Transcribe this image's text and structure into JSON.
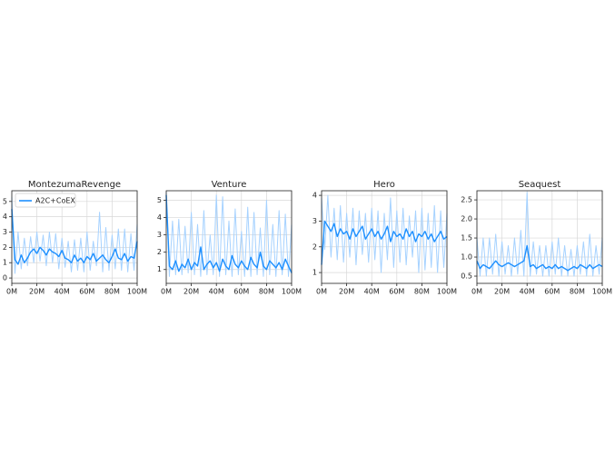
{
  "chart_data": [
    {
      "type": "line",
      "title": "MontezumaRevenge",
      "grid": true,
      "legend": "upper left",
      "x": [
        0,
        2.5,
        5,
        7.5,
        10,
        12.5,
        15,
        17.5,
        20,
        22.5,
        25,
        27.5,
        30,
        32.5,
        35,
        37.5,
        40,
        42.5,
        45,
        47.5,
        50,
        52.5,
        55,
        57.5,
        60,
        62.5,
        65,
        67.5,
        70,
        72.5,
        75,
        77.5,
        80,
        82.5,
        85,
        87.5,
        90,
        92.5,
        95,
        97.5,
        100
      ],
      "xlim": [
        0,
        100
      ],
      "xticks": [
        {
          "value": 0,
          "label": "0M"
        },
        {
          "value": 20,
          "label": "20M"
        },
        {
          "value": 40,
          "label": "40M"
        },
        {
          "value": 60,
          "label": "60M"
        },
        {
          "value": 80,
          "label": "80M"
        },
        {
          "value": 100,
          "label": "100M"
        }
      ],
      "ylim": [
        -0.35,
        5.7
      ],
      "yticks": [
        0,
        1,
        2,
        3,
        4,
        5
      ],
      "series": [
        {
          "color": "#a6d2ff",
          "values": [
            5.3,
            0.3,
            3.0,
            0.6,
            2.6,
            0.8,
            2.7,
            1.0,
            3.0,
            1.1,
            2.8,
            0.8,
            3.0,
            1.0,
            2.9,
            0.6,
            2.6,
            0.7,
            2.4,
            0.4,
            2.5,
            0.5,
            2.6,
            0.4,
            3.0,
            0.5,
            2.4,
            0.8,
            4.3,
            0.4,
            3.3,
            0.5,
            2.8,
            0.6,
            3.2,
            0.5,
            3.2,
            0.4,
            2.9,
            0.5,
            3.5
          ]
        },
        {
          "name": "A2C+CoEX",
          "color": "#1e90ff",
          "values": [
            4.5,
            1.2,
            0.9,
            1.5,
            1.0,
            1.3,
            1.7,
            1.9,
            1.6,
            2.0,
            1.8,
            1.5,
            1.9,
            1.7,
            1.6,
            1.4,
            1.8,
            1.3,
            1.2,
            1.0,
            1.5,
            1.1,
            1.3,
            1.0,
            1.4,
            1.2,
            1.6,
            1.1,
            1.3,
            1.5,
            1.2,
            1.0,
            1.4,
            1.9,
            1.3,
            1.2,
            1.6,
            1.1,
            1.4,
            1.3,
            2.4
          ]
        }
      ]
    },
    {
      "type": "line",
      "title": "Venture",
      "grid": true,
      "x": [
        0,
        2.5,
        5,
        7.5,
        10,
        12.5,
        15,
        17.5,
        20,
        22.5,
        25,
        27.5,
        30,
        32.5,
        35,
        37.5,
        40,
        42.5,
        45,
        47.5,
        50,
        52.5,
        55,
        57.5,
        60,
        62.5,
        65,
        67.5,
        70,
        72.5,
        75,
        77.5,
        80,
        82.5,
        85,
        87.5,
        90,
        92.5,
        95,
        97.5,
        100
      ],
      "xlim": [
        0,
        100
      ],
      "xticks": [
        {
          "value": 0,
          "label": "0M"
        },
        {
          "value": 20,
          "label": "20M"
        },
        {
          "value": 40,
          "label": "40M"
        },
        {
          "value": 60,
          "label": "60M"
        },
        {
          "value": 80,
          "label": "80M"
        },
        {
          "value": 100,
          "label": "100M"
        }
      ],
      "ylim": [
        0.2,
        5.55
      ],
      "yticks": [
        1,
        2,
        3,
        4,
        5
      ],
      "series": [
        {
          "color": "#a6d2ff",
          "values": [
            5.5,
            0.6,
            3.8,
            0.7,
            3.9,
            0.7,
            3.5,
            0.8,
            4.3,
            0.7,
            3.6,
            0.6,
            4.4,
            0.7,
            3.0,
            0.7,
            5.3,
            0.6,
            5.2,
            0.7,
            3.8,
            0.6,
            4.5,
            0.7,
            3.2,
            0.6,
            4.6,
            0.6,
            4.3,
            0.7,
            3.4,
            0.6,
            5.0,
            0.7,
            3.6,
            0.6,
            4.4,
            0.7,
            4.2,
            0.6,
            3.6
          ]
        },
        {
          "name": "A2C+CoEX",
          "color": "#1e90ff",
          "values": [
            5.3,
            1.2,
            1.0,
            1.5,
            0.9,
            1.3,
            1.1,
            1.6,
            1.0,
            1.4,
            1.2,
            2.3,
            1.0,
            1.3,
            1.5,
            1.1,
            1.4,
            0.9,
            1.6,
            1.2,
            1.0,
            1.8,
            1.3,
            1.1,
            1.5,
            1.2,
            1.0,
            1.7,
            1.3,
            1.1,
            2.0,
            1.2,
            1.0,
            1.5,
            1.3,
            1.1,
            1.4,
            1.0,
            1.6,
            1.2,
            0.8
          ]
        }
      ]
    },
    {
      "type": "line",
      "title": "Hero",
      "grid": true,
      "x": [
        0,
        2.5,
        5,
        7.5,
        10,
        12.5,
        15,
        17.5,
        20,
        22.5,
        25,
        27.5,
        30,
        32.5,
        35,
        37.5,
        40,
        42.5,
        45,
        47.5,
        50,
        52.5,
        55,
        57.5,
        60,
        62.5,
        65,
        67.5,
        70,
        72.5,
        75,
        77.5,
        80,
        82.5,
        85,
        87.5,
        90,
        92.5,
        95,
        97.5,
        100
      ],
      "xlim": [
        0,
        100
      ],
      "xticks": [
        {
          "value": 0,
          "label": "0M"
        },
        {
          "value": 20,
          "label": "20M"
        },
        {
          "value": 40,
          "label": "40M"
        },
        {
          "value": 60,
          "label": "60M"
        },
        {
          "value": 80,
          "label": "80M"
        },
        {
          "value": 100,
          "label": "100M"
        }
      ],
      "ylim": [
        0.58,
        4.18
      ],
      "yticks": [
        1,
        2,
        3,
        4
      ],
      "series": [
        {
          "color": "#a6d2ff",
          "values": [
            3.9,
            1.9,
            4.0,
            1.6,
            3.5,
            1.5,
            3.6,
            1.4,
            3.3,
            1.6,
            3.5,
            1.3,
            3.4,
            1.7,
            3.3,
            1.4,
            3.5,
            1.5,
            3.4,
            1.0,
            3.3,
            1.5,
            3.9,
            1.2,
            3.4,
            1.4,
            3.5,
            1.3,
            3.2,
            1.6,
            3.4,
            1.0,
            3.5,
            1.1,
            3.3,
            1.2,
            3.6,
            1.0,
            3.4,
            1.2,
            3.3
          ]
        },
        {
          "name": "A2C+CoEX",
          "color": "#1e90ff",
          "values": [
            1.3,
            3.0,
            2.8,
            2.6,
            2.9,
            2.4,
            2.7,
            2.5,
            2.6,
            2.3,
            2.7,
            2.4,
            2.6,
            2.8,
            2.3,
            2.5,
            2.7,
            2.4,
            2.6,
            2.3,
            2.5,
            2.8,
            2.2,
            2.6,
            2.4,
            2.5,
            2.3,
            2.7,
            2.4,
            2.6,
            2.2,
            2.5,
            2.4,
            2.6,
            2.3,
            2.5,
            2.2,
            2.4,
            2.6,
            2.3,
            2.4
          ]
        }
      ]
    },
    {
      "type": "line",
      "title": "Seaquest",
      "grid": true,
      "x": [
        0,
        2.5,
        5,
        7.5,
        10,
        12.5,
        15,
        17.5,
        20,
        22.5,
        25,
        27.5,
        30,
        32.5,
        35,
        37.5,
        40,
        42.5,
        45,
        47.5,
        50,
        52.5,
        55,
        57.5,
        60,
        62.5,
        65,
        67.5,
        70,
        72.5,
        75,
        77.5,
        80,
        82.5,
        85,
        87.5,
        90,
        92.5,
        95,
        97.5,
        100
      ],
      "xlim": [
        0,
        100
      ],
      "xticks": [
        {
          "value": 0,
          "label": "0M"
        },
        {
          "value": 20,
          "label": "20M"
        },
        {
          "value": 40,
          "label": "40M"
        },
        {
          "value": 60,
          "label": "60M"
        },
        {
          "value": 80,
          "label": "80M"
        },
        {
          "value": 100,
          "label": "100M"
        }
      ],
      "ylim": [
        0.31,
        2.74
      ],
      "yticks": [
        0.5,
        {
          "value": 1,
          "label": "1.0"
        },
        1.5,
        {
          "value": 2,
          "label": "2.0"
        },
        2.5
      ],
      "series": [
        {
          "color": "#a6d2ff",
          "values": [
            1.5,
            0.5,
            1.5,
            0.5,
            1.5,
            0.55,
            1.6,
            0.5,
            1.4,
            0.55,
            1.3,
            0.5,
            1.5,
            0.55,
            1.7,
            0.5,
            2.7,
            0.5,
            1.4,
            0.55,
            1.3,
            0.5,
            1.3,
            0.5,
            1.4,
            0.55,
            1.5,
            0.5,
            1.3,
            0.5,
            1.2,
            0.5,
            1.3,
            0.55,
            1.4,
            0.5,
            1.6,
            0.5,
            1.3,
            0.55,
            1.5
          ]
        },
        {
          "name": "A2C+CoEX",
          "color": "#1e90ff",
          "values": [
            0.9,
            0.7,
            0.8,
            0.75,
            0.7,
            0.8,
            0.9,
            0.8,
            0.75,
            0.8,
            0.85,
            0.8,
            0.75,
            0.8,
            0.85,
            0.9,
            1.3,
            0.75,
            0.8,
            0.7,
            0.75,
            0.8,
            0.7,
            0.75,
            0.7,
            0.8,
            0.7,
            0.75,
            0.7,
            0.65,
            0.7,
            0.75,
            0.7,
            0.8,
            0.75,
            0.7,
            0.8,
            0.7,
            0.75,
            0.8,
            0.75
          ]
        }
      ]
    }
  ]
}
